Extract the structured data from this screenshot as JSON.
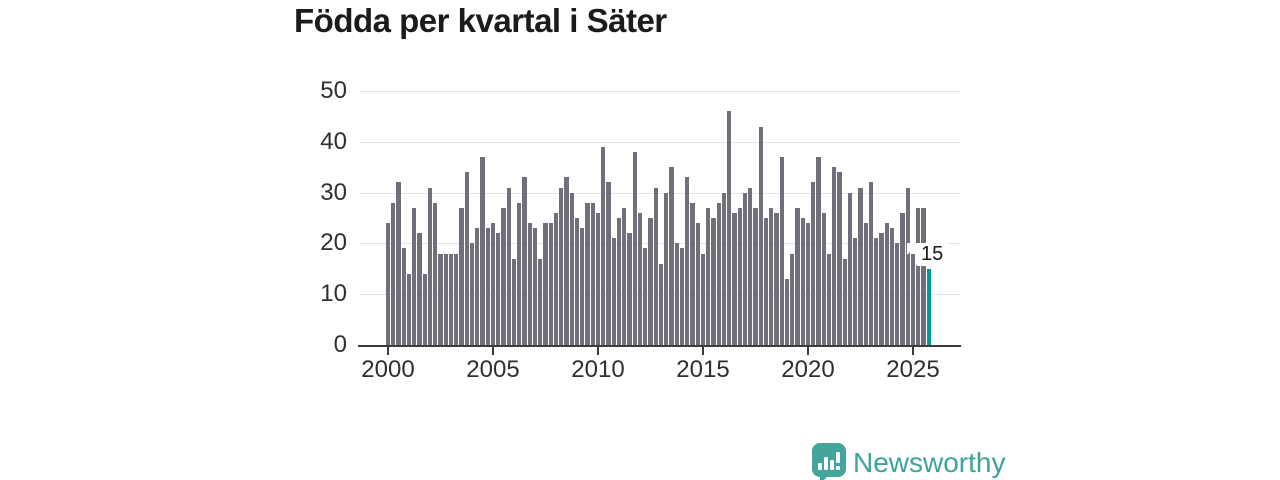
{
  "page": {
    "title": "Födda per kvartal i Säter"
  },
  "chart_data": {
    "type": "bar",
    "title": "Födda per kvartal i Säter",
    "frequency": "quarterly",
    "x_start": "2000 Q1",
    "x_end": "2025 Q4",
    "x_tick_labels": [
      "2000",
      "2005",
      "2010",
      "2015",
      "2020",
      "2025"
    ],
    "y_tick_labels": [
      "0",
      "10",
      "20",
      "30",
      "40",
      "50"
    ],
    "y_ticks": [
      0,
      10,
      20,
      30,
      40,
      50
    ],
    "ylim": [
      0,
      50
    ],
    "grid": true,
    "legend": "none",
    "values": [
      24,
      28,
      32,
      19,
      14,
      27,
      22,
      14,
      31,
      28,
      18,
      18,
      18,
      18,
      27,
      34,
      20,
      23,
      37,
      23,
      24,
      22,
      27,
      31,
      17,
      28,
      33,
      24,
      23,
      17,
      24,
      24,
      26,
      31,
      33,
      30,
      25,
      23,
      28,
      28,
      26,
      39,
      32,
      21,
      25,
      27,
      22,
      38,
      26,
      19,
      25,
      31,
      16,
      30,
      35,
      20,
      19,
      33,
      28,
      24,
      18,
      27,
      25,
      28,
      30,
      46,
      26,
      27,
      30,
      31,
      27,
      43,
      25,
      27,
      26,
      37,
      13,
      18,
      27,
      25,
      24,
      32,
      37,
      26,
      18,
      35,
      34,
      17,
      30,
      21,
      31,
      24,
      32,
      21,
      22,
      24,
      23,
      20,
      26,
      31,
      18,
      27,
      27,
      15
    ],
    "highlight_last_bar": true,
    "highlight_label": "15",
    "colors": {
      "bar": "#70707a",
      "highlight": "#009b94",
      "grid": "#e4e4e4",
      "axis": "#3c3c3c",
      "tick_text": "#2f2f2f",
      "title_text": "#1b1b1b"
    }
  },
  "branding": {
    "logo_text": "Newsworthy",
    "logo_color": "#3ba39a",
    "logo_icon": "speech-bubble-bar-chart-icon"
  }
}
